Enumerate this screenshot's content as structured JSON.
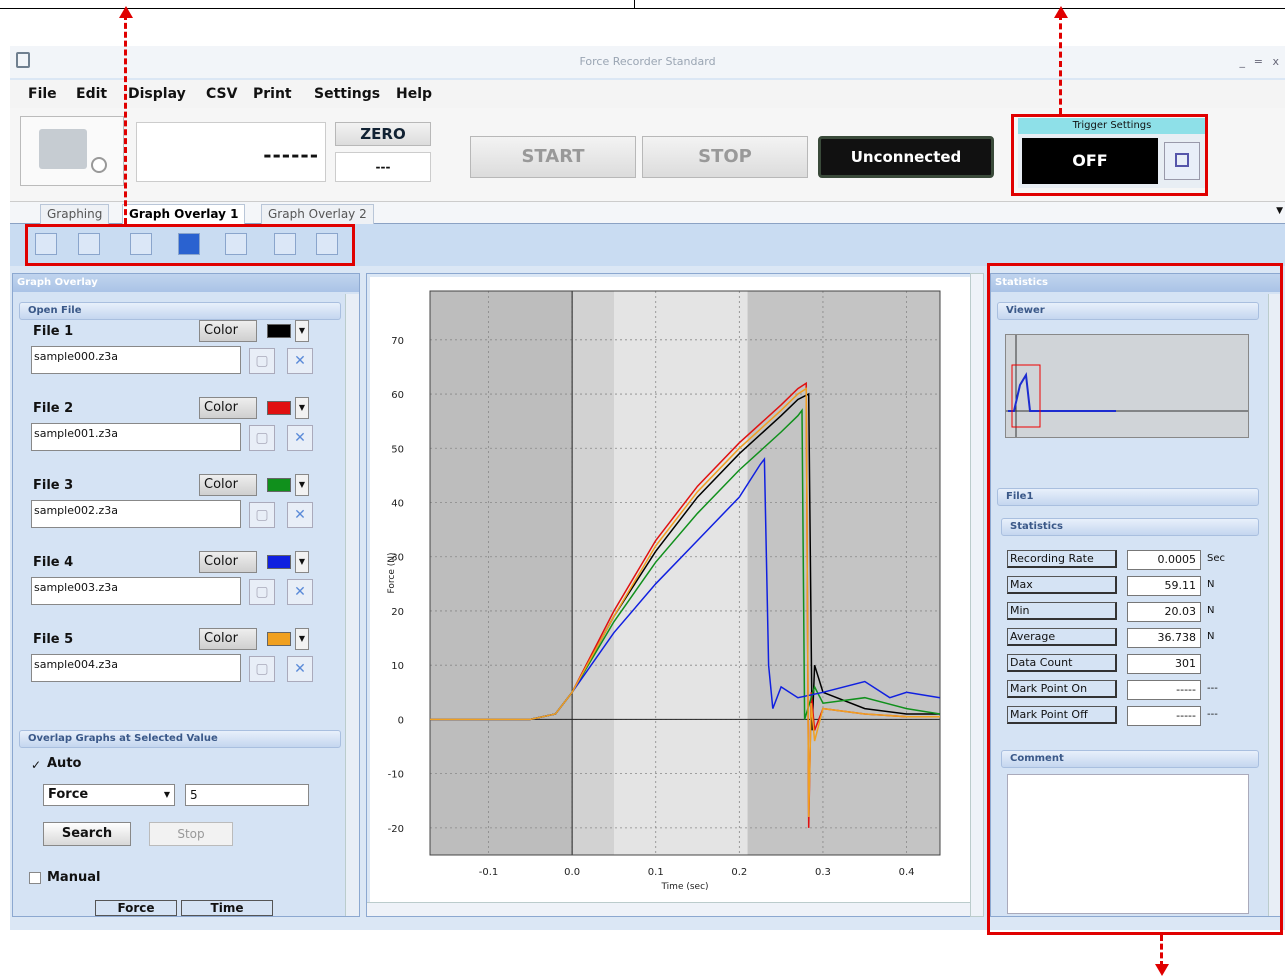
{
  "app": {
    "title": "Force Recorder Standard",
    "window_controls": [
      "_",
      "=",
      "x"
    ]
  },
  "menu": [
    "File",
    "Edit",
    "Display",
    "CSV",
    "Print",
    "Settings",
    "Help"
  ],
  "toolbar": {
    "display_value": "------",
    "zero_label": "ZERO",
    "zero_value": "---",
    "start_label": "START",
    "stop_label": "STOP",
    "status_label": "Unconnected",
    "trigger_title": "Trigger Settings",
    "trigger_value": "OFF"
  },
  "tabs": [
    {
      "label": "Graphing",
      "active": false
    },
    {
      "label": "Graph Overlay 1",
      "active": true
    },
    {
      "label": "Graph Overlay 2",
      "active": false
    }
  ],
  "tools": [
    "zoom-icon",
    "undo-icon",
    "select-rect-icon",
    "pan-hand-icon",
    "measure-icon",
    "cursor-icon",
    "image-icon"
  ],
  "left_panel": {
    "title": "Graph Overlay",
    "open_file_title": "Open File",
    "color_label": "Color",
    "files": [
      {
        "label": "File 1",
        "name": "sample000.z3a",
        "color": "#000000"
      },
      {
        "label": "File 2",
        "name": "sample001.z3a",
        "color": "#e01010"
      },
      {
        "label": "File 3",
        "name": "sample002.z3a",
        "color": "#10901c"
      },
      {
        "label": "File 4",
        "name": "sample003.z3a",
        "color": "#1020e0"
      },
      {
        "label": "File 5",
        "name": "sample004.z3a",
        "color": "#f0a020"
      }
    ],
    "overlap_title": "Overlap Graphs at Selected Value",
    "auto_label": "Auto",
    "select_value": "Force",
    "select_input": "5",
    "search_label": "Search",
    "stop_label": "Stop",
    "manual_label": "Manual",
    "col_force": "Force",
    "col_time": "Time"
  },
  "chart_data": {
    "type": "line",
    "xlabel": "Time (sec)",
    "ylabel": "Force (N)",
    "xlim": [
      -0.17,
      0.44
    ],
    "ylim": [
      -25,
      79
    ],
    "xticks": [
      "-0.1",
      "0.0",
      "0.1",
      "0.2",
      "0.3",
      "0.4"
    ],
    "xtick_values": [
      -0.1,
      0.0,
      0.1,
      0.2,
      0.3,
      0.4
    ],
    "yticks": [
      "70",
      "60",
      "50",
      "40",
      "30",
      "20",
      "10",
      "0",
      "-10",
      "-20"
    ],
    "ytick_values": [
      70,
      60,
      50,
      40,
      30,
      20,
      10,
      0,
      -10,
      -20
    ],
    "grid": true,
    "series": [
      {
        "color": "#000000",
        "x": [
          -0.17,
          -0.05,
          -0.02,
          0.0,
          0.05,
          0.1,
          0.15,
          0.2,
          0.25,
          0.27,
          0.283,
          0.287,
          0.29,
          0.3,
          0.35,
          0.4,
          0.44
        ],
        "y": [
          0,
          0,
          1,
          5,
          19,
          31,
          41,
          49,
          56,
          59,
          60,
          -2,
          10,
          5,
          2,
          1,
          1
        ]
      },
      {
        "color": "#e01010",
        "x": [
          -0.17,
          -0.05,
          -0.02,
          0.0,
          0.05,
          0.1,
          0.15,
          0.2,
          0.25,
          0.27,
          0.28,
          0.283,
          0.286,
          0.29,
          0.3,
          0.35,
          0.4,
          0.44
        ],
        "y": [
          0,
          0,
          1,
          5,
          20,
          33,
          43,
          51,
          58,
          61,
          62,
          -20,
          5,
          -2,
          2,
          1,
          0.5,
          0.5
        ]
      },
      {
        "color": "#10901c",
        "x": [
          -0.17,
          -0.05,
          -0.02,
          0.0,
          0.05,
          0.1,
          0.15,
          0.2,
          0.25,
          0.27,
          0.275,
          0.278,
          0.29,
          0.3,
          0.35,
          0.4,
          0.44
        ],
        "y": [
          0,
          0,
          1,
          5,
          18,
          29,
          38,
          46,
          53,
          56,
          57,
          0,
          6,
          3,
          4,
          2,
          1
        ]
      },
      {
        "color": "#1020e0",
        "x": [
          -0.17,
          -0.05,
          -0.02,
          0.0,
          0.05,
          0.1,
          0.15,
          0.2,
          0.225,
          0.23,
          0.235,
          0.24,
          0.25,
          0.27,
          0.3,
          0.35,
          0.38,
          0.4,
          0.44
        ],
        "y": [
          0,
          0,
          1,
          5,
          16,
          25,
          33,
          41,
          47,
          48,
          10,
          2,
          6,
          4,
          5,
          7,
          4,
          5,
          4
        ]
      },
      {
        "color": "#f0a020",
        "x": [
          -0.17,
          -0.05,
          -0.02,
          0.0,
          0.05,
          0.1,
          0.15,
          0.2,
          0.25,
          0.27,
          0.28,
          0.283,
          0.286,
          0.29,
          0.3,
          0.35,
          0.4,
          0.44
        ],
        "y": [
          0,
          0,
          1,
          5,
          19,
          32,
          42,
          50,
          57,
          60,
          61,
          -18,
          3,
          -4,
          2,
          1,
          0.5,
          0.5
        ]
      }
    ]
  },
  "right_panel": {
    "title": "Statistics",
    "viewer_title": "Viewer",
    "file_title": "File1",
    "statistics_title": "Statistics",
    "rows": [
      {
        "label": "Recording Rate",
        "value": "0.0005",
        "unit": "Sec"
      },
      {
        "label": "Max",
        "value": "59.11",
        "unit": "N"
      },
      {
        "label": "Min",
        "value": "20.03",
        "unit": "N"
      },
      {
        "label": "Average",
        "value": "36.738",
        "unit": "N"
      },
      {
        "label": "Data Count",
        "value": "301",
        "unit": ""
      },
      {
        "label": "Mark Point On",
        "value": "-----",
        "unit": "---"
      },
      {
        "label": "Mark Point Off",
        "value": "-----",
        "unit": "---"
      }
    ],
    "comment_title": "Comment"
  }
}
